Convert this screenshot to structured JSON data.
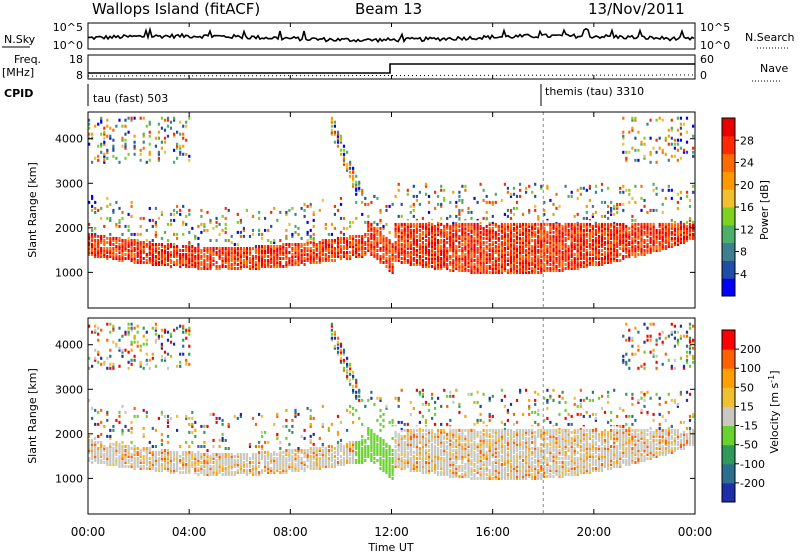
{
  "header": {
    "station": "Wallops Island (fitACF)",
    "beam": "Beam 13",
    "date": "13/Nov/2011"
  },
  "noise_panel": {
    "left_label": "N.Sky",
    "left_ticks": [
      "10^5",
      "10^0"
    ],
    "right_ticks": [
      "10^5",
      "10^0"
    ],
    "right_label": "N.Search"
  },
  "freq_panel": {
    "left_label_line1": "Freq.",
    "left_label_line2": "[MHz]",
    "left_ticks": [
      "18",
      "8"
    ],
    "right_ticks": [
      "60",
      "0"
    ],
    "right_label": "Nave"
  },
  "cpid": {
    "label": "CPID",
    "segments": [
      "tau (fast) 503",
      "themis (tau) 3310"
    ]
  },
  "chart_data": [
    {
      "type": "heatmap",
      "name": "power",
      "ylabel": "Slant Range [km]",
      "yticks": [
        "4000",
        "3000",
        "2000",
        "1000"
      ],
      "colorbar_label": "Power [dB]",
      "colorbar_ticks": [
        "28",
        "24",
        "20",
        "16",
        "12",
        "8",
        "4"
      ],
      "colors": [
        "#0000ff",
        "#1f4ea8",
        "#3c7f8f",
        "#4caf6a",
        "#7ed321",
        "#f0c030",
        "#ff9900",
        "#ff6a00",
        "#ff2a00",
        "#e80000"
      ]
    },
    {
      "type": "heatmap",
      "name": "velocity",
      "ylabel": "Slant Range [km]",
      "yticks": [
        "4000",
        "3000",
        "2000",
        "1000"
      ],
      "colorbar_label_main": "Velocity [m s",
      "colorbar_label_sup": "-1",
      "colorbar_label_end": "]",
      "colorbar_ticks": [
        "200",
        "100",
        "50",
        "15",
        "-15",
        "-50",
        "-100",
        "-200"
      ],
      "colors": [
        "#1c2fa8",
        "#2d6e8e",
        "#2f9a5c",
        "#6ad22e",
        "#c8c8c0",
        "#f0c030",
        "#ffa000",
        "#ff6000",
        "#ff0000"
      ]
    }
  ],
  "xaxis": {
    "ticks": [
      "00:00",
      "04:00",
      "08:00",
      "12:00",
      "16:00",
      "20:00",
      "00:00"
    ],
    "label": "Time UT"
  }
}
